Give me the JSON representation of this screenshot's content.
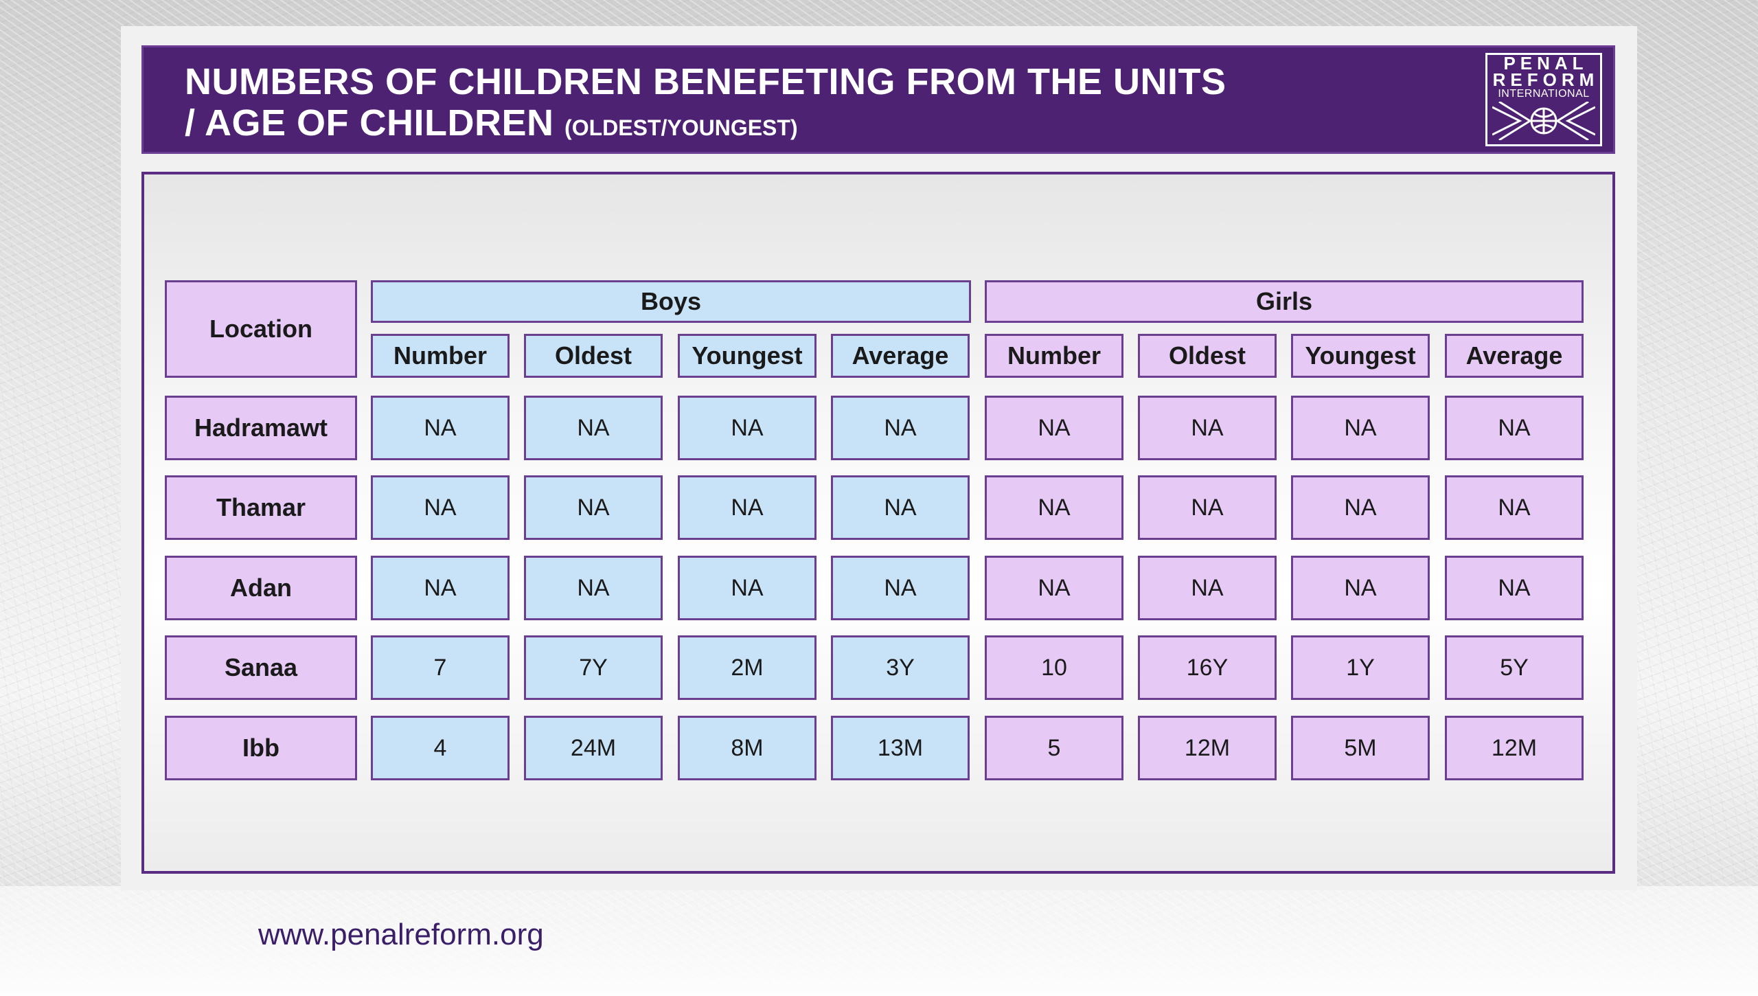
{
  "header": {
    "title_line1": "NUMBERS OF CHILDREN BENEFETING FROM THE UNITS",
    "title_line2": "/ AGE OF CHILDREN",
    "title_sub": "(OLDEST/YOUNGEST)"
  },
  "logo": {
    "line1": "PENAL",
    "line2": "REFORM",
    "line3": "INTERNATIONAL"
  },
  "table": {
    "location_header": "Location",
    "groups": [
      "Boys",
      "Girls"
    ],
    "subheaders": [
      "Number",
      "Oldest",
      "Youngest",
      "Average",
      "Number",
      "Oldest",
      "Youngest",
      "Average"
    ],
    "rows": [
      {
        "location": "Hadramawt",
        "values": [
          "NA",
          "NA",
          "NA",
          "NA",
          "NA",
          "NA",
          "NA",
          "NA"
        ]
      },
      {
        "location": "Thamar",
        "values": [
          "NA",
          "NA",
          "NA",
          "NA",
          "NA",
          "NA",
          "NA",
          "NA"
        ]
      },
      {
        "location": "Adan",
        "values": [
          "NA",
          "NA",
          "NA",
          "NA",
          "NA",
          "NA",
          "NA",
          "NA"
        ]
      },
      {
        "location": "Sanaa",
        "values": [
          "7",
          "7Y",
          "2M",
          "3Y",
          "10",
          "16Y",
          "1Y",
          "5Y"
        ]
      },
      {
        "location": "Ibb",
        "values": [
          "4",
          "24M",
          "8M",
          "13M",
          "5",
          "12M",
          "5M",
          "12M"
        ]
      }
    ]
  },
  "footer": {
    "url": "www.penalreform.org"
  },
  "colors": {
    "header_bg": "#4d2272",
    "boys_cell": "#c8e3f8",
    "girls_cell": "#e6caf5",
    "border": "#6a3f90"
  }
}
